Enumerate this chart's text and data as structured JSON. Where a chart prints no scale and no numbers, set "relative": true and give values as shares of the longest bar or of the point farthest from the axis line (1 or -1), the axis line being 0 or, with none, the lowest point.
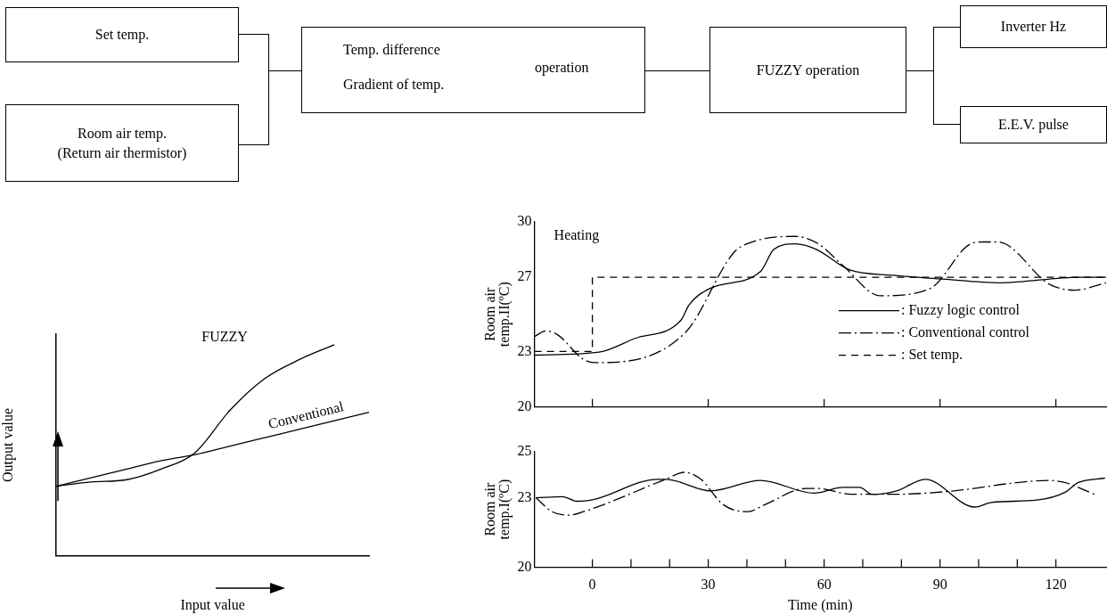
{
  "chart_data": [
    {
      "type": "other",
      "annotations": [
        "Set temp.",
        "Room air temp.\n(Return air thermistor)",
        "Temp. difference",
        "Gradient of temp.",
        "operation",
        "FUZZY operation",
        "Inverter Hz",
        "E.E.V. pulse"
      ]
    },
    {
      "type": "line",
      "relative": true,
      "xlabel": "Input value",
      "ylabel": "Output value",
      "categories": [
        null,
        null,
        null,
        null,
        null,
        null,
        null,
        null,
        null,
        null
      ],
      "marker": "none",
      "legend": false,
      "tick_labels": false,
      "series": [
        {
          "name": "FUZZY",
          "color": "#000000",
          "line_style": "solid",
          "values": [
            0.33,
            0.35,
            0.36,
            0.41,
            0.49,
            0.69,
            0.84,
            0.93,
            1,
            null
          ]
        },
        {
          "name": "Conventional",
          "color": "#000000",
          "line_style": "solid",
          "values": [
            0.33,
            0.37,
            0.41,
            0.45,
            0.48,
            0.52,
            0.56,
            0.6,
            0.64,
            0.68
          ]
        }
      ]
    },
    {
      "type": "line",
      "ylabel": "Room air\ntemp.II(ºC)",
      "annotations": [
        "Heating"
      ],
      "xlim": [
        -15,
        133
      ],
      "xticks": [
        {
          "value": 0,
          "label": null
        },
        {
          "value": 30,
          "label": null
        },
        {
          "value": 60,
          "label": null
        },
        {
          "value": 90,
          "label": null
        },
        {
          "value": 120,
          "label": null
        }
      ],
      "ylim": [
        20,
        30
      ],
      "yticks": [
        20,
        23,
        27,
        30
      ],
      "tick_labels": "y",
      "marker": "none",
      "grid": false,
      "legend": "right",
      "series": [
        {
          "name": ": Fuzzy logic control",
          "color": "#000000",
          "line_style": "solid",
          "x": [
            -15,
            1.75,
            11,
            23,
            25,
            30.5,
            43.5,
            47,
            52.5,
            58,
            66.5,
            78,
            90.5,
            105.5,
            126,
            133
          ],
          "values": [
            22.8,
            22.96,
            23.7,
            24.7,
            25.5,
            26.4,
            27.3,
            28.5,
            28.8,
            28.5,
            27.4,
            27.1,
            26.9,
            26.7,
            27.0,
            27.0
          ]
        },
        {
          "name": ": Conventional control",
          "color": "#000000",
          "line_style": "dashdot",
          "x": [
            -15,
            -12,
            -9,
            -2.5,
            0.5,
            24,
            36.5,
            40,
            52.5,
            58.5,
            65,
            74.5,
            87.5,
            98,
            101.5,
            105,
            118.5,
            125,
            133
          ],
          "values": [
            23.8,
            24.1,
            23.9,
            22.6,
            22.4,
            24.0,
            28.3,
            28.8,
            29.2,
            28.8,
            27.6,
            26.0,
            26.4,
            28.8,
            28.9,
            28.9,
            26.6,
            26.3,
            26.7
          ]
        },
        {
          "name": ": Set temp.",
          "color": "#000000",
          "line_style": "dashed",
          "x": [
            -15,
            0,
            0,
            133
          ],
          "values": [
            23,
            23,
            27,
            27
          ]
        }
      ]
    },
    {
      "type": "line",
      "ylabel": "Room air\ntemp.I(ºC)",
      "xlabel": "Time (min)",
      "xlim": [
        -15,
        133
      ],
      "xticks": [
        0,
        {
          "value": 10,
          "label": null
        },
        {
          "value": 20,
          "label": null
        },
        30,
        {
          "value": 40,
          "label": null
        },
        {
          "value": 50,
          "label": null
        },
        60,
        {
          "value": 70,
          "label": null
        },
        {
          "value": 80,
          "label": null
        },
        90,
        {
          "value": 100,
          "label": null
        },
        {
          "value": 110,
          "label": null
        },
        120
      ],
      "ylim": [
        20,
        25
      ],
      "yticks": [
        20,
        23,
        25
      ],
      "marker": "none",
      "grid": false,
      "series": [
        {
          "color": "#000000",
          "line_style": "solid",
          "x": [
            -14.6,
            -7.7,
            -4,
            -0.2,
            16.9,
            19,
            30.7,
            43.5,
            57.4,
            64.9,
            69.2,
            72.4,
            78.8,
            86.2,
            99,
            103.3,
            115,
            122.5,
            125.7,
            132.7
          ],
          "values": [
            23.0,
            23.05,
            22.85,
            22.9,
            23.8,
            23.8,
            23.3,
            23.75,
            23.2,
            23.45,
            23.45,
            23.15,
            23.3,
            23.8,
            22.6,
            22.8,
            22.9,
            23.25,
            23.65,
            23.85
          ]
        },
        {
          "color": "#000000",
          "line_style": "dashdot",
          "x": [
            -14.6,
            -10.4,
            -6.1,
            -2.3,
            19,
            23.8,
            28.1,
            33.9,
            40.3,
            44.6,
            55.3,
            58.5,
            67,
            77.7,
            93.7,
            109.7,
            118.2,
            122.5,
            130
          ],
          "values": [
            23.0,
            22.4,
            22.25,
            22.4,
            23.8,
            24.1,
            23.8,
            22.7,
            22.4,
            22.7,
            23.4,
            23.4,
            23.15,
            23.15,
            23.3,
            23.65,
            23.75,
            23.65,
            23.15
          ]
        }
      ]
    }
  ]
}
